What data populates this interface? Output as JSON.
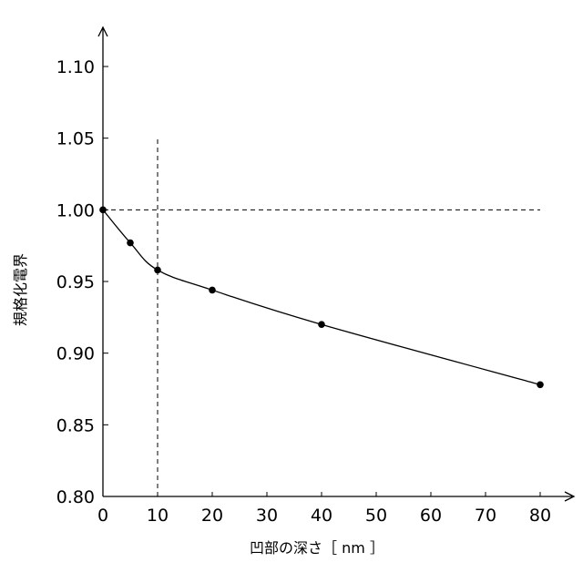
{
  "chart_data": {
    "type": "line",
    "title": "",
    "xlabel": "凹部の深さ［ nm ］",
    "ylabel": "規格化電界",
    "xlim": [
      0,
      80
    ],
    "ylim": [
      0.8,
      1.1
    ],
    "x_ticks": [
      "0",
      "10",
      "20",
      "30",
      "40",
      "50",
      "60",
      "70",
      "80"
    ],
    "y_ticks": [
      "0.80",
      "0.85",
      "0.90",
      "0.95",
      "1.00",
      "1.05",
      "1.10"
    ],
    "grid": false,
    "series": [
      {
        "x": [
          0,
          5,
          10,
          20,
          40,
          80
        ],
        "y": [
          1.0,
          0.977,
          0.958,
          0.944,
          0.92,
          0.878
        ]
      }
    ],
    "reference_lines": [
      {
        "orientation": "horizontal",
        "value": 1.0,
        "style": "dashed"
      },
      {
        "orientation": "vertical",
        "value": 10,
        "style": "dashed"
      }
    ],
    "colors": {
      "line": "#000000",
      "marker": "#000000",
      "axis": "#000000"
    }
  }
}
